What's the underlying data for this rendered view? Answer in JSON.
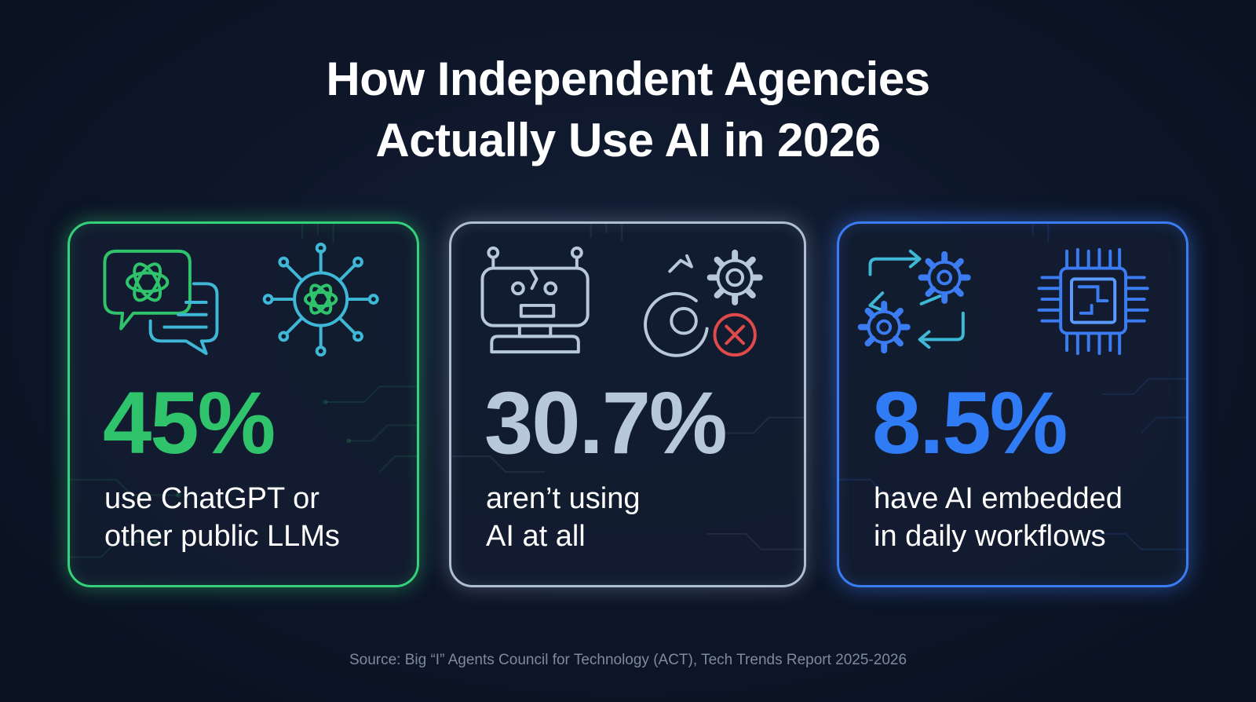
{
  "title": {
    "line1": "How Independent Agencies",
    "line2": "Actually Use AI in 2026"
  },
  "cards": [
    {
      "accent": "#2fc46c",
      "stat": "45%",
      "value_percent": 45,
      "desc_line1": "use ChatGPT or",
      "desc_line2": "other public LLMs",
      "icons": [
        "chat-bubbles-openai-icon",
        "neural-network-openai-icon"
      ]
    },
    {
      "accent": "#b7c8da",
      "stat": "30.7%",
      "value_percent": 30.7,
      "desc_line1": "aren’t using",
      "desc_line2": "AI at all",
      "icons": [
        "broken-robot-icon",
        "broken-gears-x-icon"
      ]
    },
    {
      "accent": "#2f7cf6",
      "stat": "8.5%",
      "value_percent": 8.5,
      "desc_line1": "have AI embedded",
      "desc_line2": "in daily workflows",
      "icons": [
        "workflow-gears-icon",
        "microchip-icon"
      ]
    }
  ],
  "source": "Source: Big “I” Agents Council for Technology (ACT), Tech Trends Report 2025-2026"
}
